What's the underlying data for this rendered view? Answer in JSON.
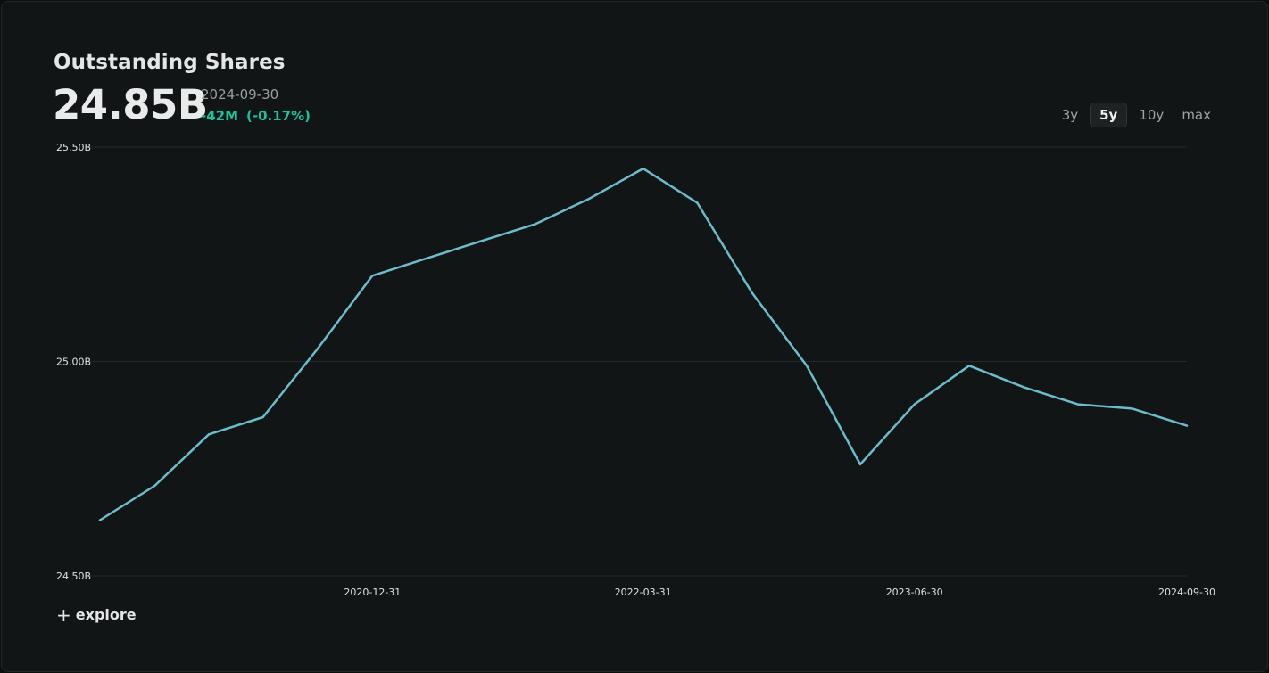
{
  "header": {
    "title": "Outstanding Shares",
    "value": "24.85B",
    "as_of": "2024-09-30",
    "change_abs": "-42M",
    "change_pct": "(-0.17%)"
  },
  "ranges": [
    {
      "label": "3y",
      "active": false
    },
    {
      "label": "5y",
      "active": true
    },
    {
      "label": "10y",
      "active": false
    },
    {
      "label": "max",
      "active": false
    }
  ],
  "footer": {
    "explore_icon": "plus-icon",
    "explore_label": "explore"
  },
  "colors": {
    "line": "#6bbccc",
    "change_negative": "#19c29b",
    "grid": "#242a2a"
  },
  "chart_data": {
    "type": "line",
    "title": "Outstanding Shares",
    "xlabel": "",
    "ylabel": "",
    "unit": "B",
    "ylim": [
      24.5,
      25.5
    ],
    "y_ticks": [
      24.5,
      25.0,
      25.5
    ],
    "y_tick_labels": [
      "24.50B",
      "25.00B",
      "25.50B"
    ],
    "x_ticks": [
      "2020-12-31",
      "2022-03-31",
      "2023-06-30",
      "2024-09-30"
    ],
    "grid": true,
    "series": [
      {
        "x": [
          "2019-09-30",
          "2019-12-31",
          "2020-03-31",
          "2020-06-30",
          "2020-09-30",
          "2020-12-31",
          "2021-03-31",
          "2021-06-30",
          "2021-09-30",
          "2021-12-31",
          "2022-03-31",
          "2022-06-30",
          "2022-09-30",
          "2022-12-31",
          "2023-03-31",
          "2023-06-30",
          "2023-09-30",
          "2023-12-31",
          "2024-03-31",
          "2024-06-30",
          "2024-09-30"
        ],
        "y": [
          24.63,
          24.71,
          24.83,
          24.87,
          25.03,
          25.2,
          25.24,
          25.28,
          25.32,
          25.38,
          25.45,
          25.37,
          25.16,
          24.99,
          24.76,
          24.9,
          24.99,
          24.94,
          24.9,
          24.89,
          24.85
        ]
      }
    ]
  }
}
